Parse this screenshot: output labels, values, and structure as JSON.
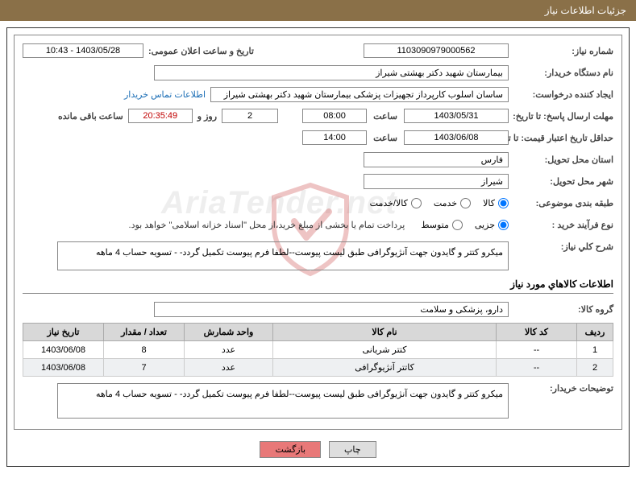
{
  "title": "جزئیات اطلاعات نیاز",
  "need_number": {
    "label": "شماره نیاز:",
    "value": "1103090979000562"
  },
  "announce": {
    "label": "تاریخ و ساعت اعلان عمومی:",
    "value": "1403/05/28 - 10:43"
  },
  "buyer_org": {
    "label": "نام دستگاه خریدار:",
    "value": "بیمارستان شهید دکتر بهشتی شیراز"
  },
  "requester": {
    "label": "ایجاد کننده درخواست:",
    "value": "ساسان اسلوب کارپرداز  تجهیزات پزشکی بیمارستان شهید دکتر بهشتی شیراز",
    "contact": "اطلاعات تماس خریدار"
  },
  "deadline": {
    "label": "مهلت ارسال پاسخ: تا تاریخ:",
    "date": "1403/05/31",
    "time_lbl": "ساعت",
    "time": "08:00",
    "days": "2",
    "days_lbl": "روز و",
    "countdown": "20:35:49",
    "remain_lbl": "ساعت باقی مانده"
  },
  "validity": {
    "label": "حداقل تاریخ اعتبار قیمت: تا تاریخ:",
    "date": "1403/06/08",
    "time_lbl": "ساعت",
    "time": "14:00"
  },
  "province": {
    "label": "استان محل تحویل:",
    "value": "فارس"
  },
  "city": {
    "label": "شهر محل تحویل:",
    "value": "شیراز"
  },
  "category": {
    "label": "طبقه بندی موضوعی:",
    "opts": [
      "کالا",
      "خدمت",
      "کالا/خدمت"
    ],
    "selected": 0
  },
  "process": {
    "label": "نوع فرآیند خرید :",
    "opts": [
      "جزیی",
      "متوسط"
    ],
    "selected": 0,
    "note": "پرداخت تمام یا بخشی از مبلغ خرید،از محل \"اسناد خزانه اسلامی\" خواهد بود."
  },
  "desc_need": {
    "label": "شرح کلي نیاز:",
    "value": "میکرو کتتر و گایدون جهت آنژیوگرافی طبق لیست پیوست--لطفا فرم پیوست تکمیل گردد- -  تسویه حساب 4 ماهه"
  },
  "goods_title": "اطلاعات کالاهاي مورد نیاز",
  "goods_group": {
    "label": "گروه کالا:",
    "value": "دارو، پزشکی و سلامت"
  },
  "table": {
    "headers": [
      "ردیف",
      "کد کالا",
      "نام کالا",
      "واحد شمارش",
      "تعداد / مقدار",
      "تاریخ نیاز"
    ],
    "rows": [
      [
        "1",
        "--",
        "کتتر شریانی",
        "عدد",
        "8",
        "1403/06/08"
      ],
      [
        "2",
        "--",
        "کاتتر آنژیوگرافی",
        "عدد",
        "7",
        "1403/06/08"
      ]
    ]
  },
  "buyer_notes": {
    "label": "توضیحات خریدار:",
    "value": "میکرو کتتر و گایدون جهت آنژیوگرافی طبق لیست پیوست--لطفا فرم پیوست تکمیل گردد- -  تسویه حساب 4 ماهه"
  },
  "buttons": {
    "print": "چاپ",
    "return": "بازگشت"
  },
  "watermark": "AriaTender.net"
}
